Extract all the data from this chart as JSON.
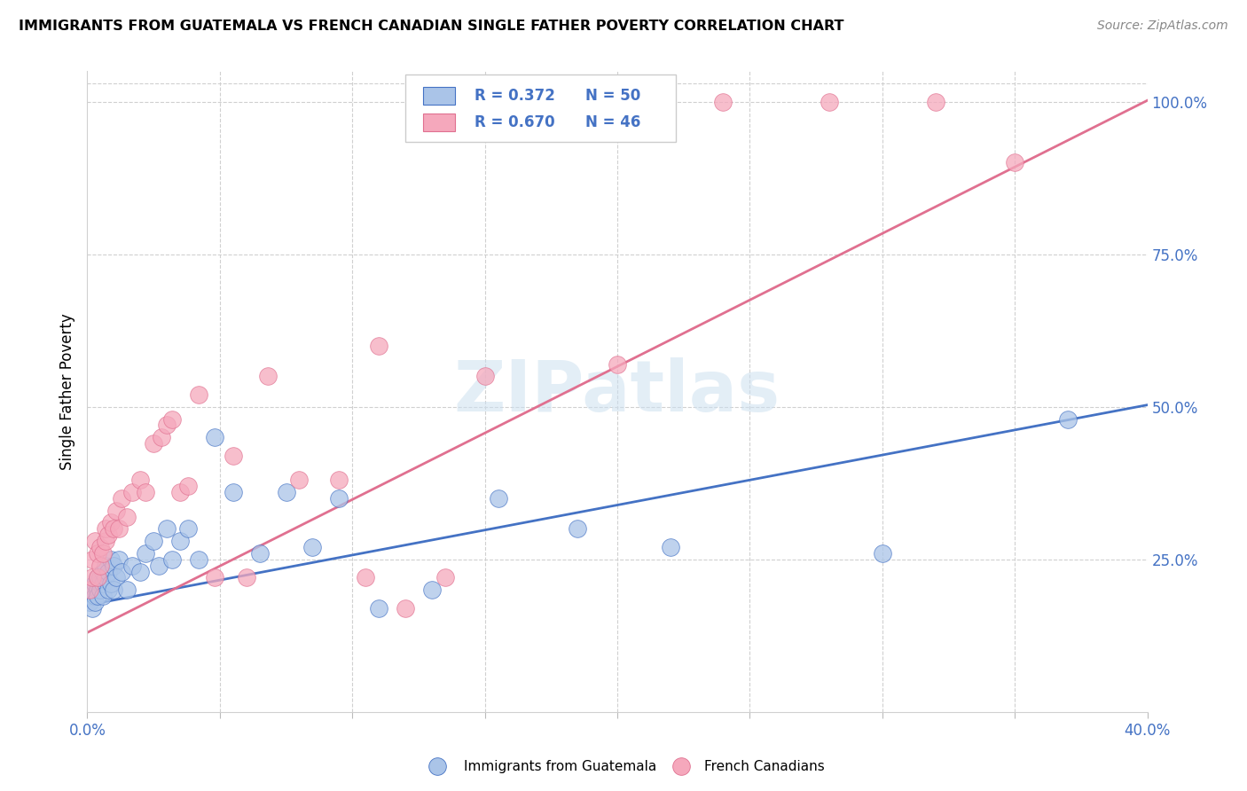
{
  "title": "IMMIGRANTS FROM GUATEMALA VS FRENCH CANADIAN SINGLE FATHER POVERTY CORRELATION CHART",
  "source": "Source: ZipAtlas.com",
  "ylabel": "Single Father Poverty",
  "legend_label1": "Immigrants from Guatemala",
  "legend_label2": "French Canadians",
  "r1": "0.372",
  "n1": "50",
  "r2": "0.670",
  "n2": "46",
  "color1": "#aac4e8",
  "color2": "#f5a8bc",
  "line_color1": "#4472c4",
  "line_color2": "#e07090",
  "watermark": "ZIPatlas",
  "xlim": [
    0.0,
    0.4
  ],
  "ylim": [
    0.0,
    1.05
  ],
  "yticks_right": [
    0.25,
    0.5,
    0.75,
    1.0
  ],
  "blue_intercept": 0.175,
  "blue_slope": 0.82,
  "pink_intercept": 0.13,
  "pink_slope": 2.18,
  "blue_x": [
    0.001,
    0.002,
    0.002,
    0.003,
    0.003,
    0.003,
    0.004,
    0.004,
    0.004,
    0.005,
    0.005,
    0.005,
    0.006,
    0.006,
    0.006,
    0.007,
    0.007,
    0.008,
    0.008,
    0.009,
    0.009,
    0.01,
    0.01,
    0.011,
    0.012,
    0.013,
    0.015,
    0.017,
    0.02,
    0.022,
    0.025,
    0.027,
    0.03,
    0.032,
    0.035,
    0.038,
    0.042,
    0.048,
    0.055,
    0.065,
    0.075,
    0.085,
    0.095,
    0.11,
    0.13,
    0.155,
    0.185,
    0.22,
    0.3,
    0.37
  ],
  "blue_y": [
    0.18,
    0.17,
    0.2,
    0.19,
    0.21,
    0.18,
    0.2,
    0.22,
    0.19,
    0.21,
    0.2,
    0.22,
    0.21,
    0.23,
    0.19,
    0.22,
    0.24,
    0.2,
    0.23,
    0.21,
    0.25,
    0.2,
    0.24,
    0.22,
    0.25,
    0.23,
    0.2,
    0.24,
    0.23,
    0.26,
    0.28,
    0.24,
    0.3,
    0.25,
    0.28,
    0.3,
    0.25,
    0.45,
    0.36,
    0.26,
    0.36,
    0.27,
    0.35,
    0.17,
    0.2,
    0.35,
    0.3,
    0.27,
    0.26,
    0.48
  ],
  "pink_x": [
    0.001,
    0.002,
    0.002,
    0.003,
    0.004,
    0.004,
    0.005,
    0.005,
    0.006,
    0.007,
    0.007,
    0.008,
    0.009,
    0.01,
    0.011,
    0.012,
    0.013,
    0.015,
    0.017,
    0.02,
    0.022,
    0.025,
    0.028,
    0.03,
    0.032,
    0.035,
    0.038,
    0.042,
    0.048,
    0.055,
    0.06,
    0.068,
    0.11,
    0.14,
    0.165,
    0.2,
    0.24,
    0.28,
    0.32,
    0.35,
    0.08,
    0.095,
    0.105,
    0.12,
    0.135,
    0.15
  ],
  "pink_y": [
    0.2,
    0.22,
    0.25,
    0.28,
    0.22,
    0.26,
    0.24,
    0.27,
    0.26,
    0.28,
    0.3,
    0.29,
    0.31,
    0.3,
    0.33,
    0.3,
    0.35,
    0.32,
    0.36,
    0.38,
    0.36,
    0.44,
    0.45,
    0.47,
    0.48,
    0.36,
    0.37,
    0.52,
    0.22,
    0.42,
    0.22,
    0.55,
    0.6,
    1.0,
    1.0,
    0.57,
    1.0,
    1.0,
    1.0,
    0.9,
    0.38,
    0.38,
    0.22,
    0.17,
    0.22,
    0.55
  ]
}
